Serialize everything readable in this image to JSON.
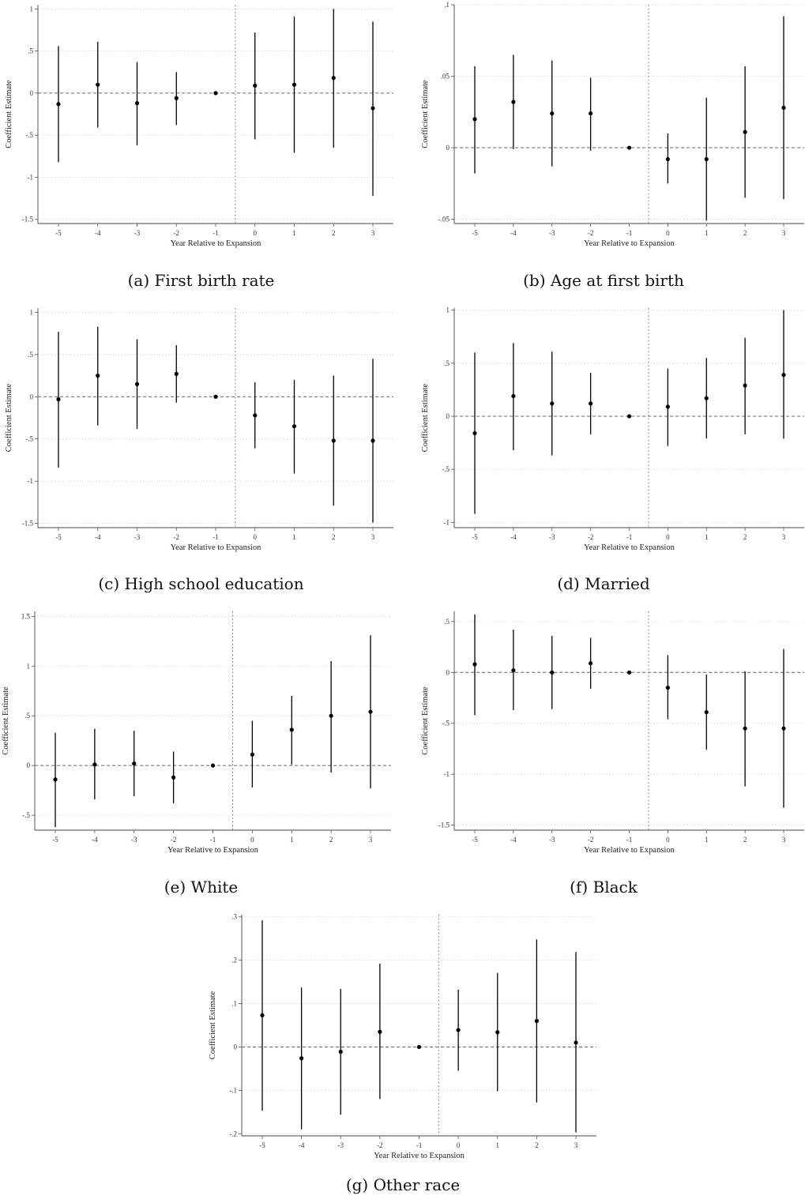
{
  "chart_data": [
    {
      "type": "scatter",
      "caption": "(a) First birth rate",
      "xlabel": "Year Relative to Expansion",
      "ylabel": "Coefficient Estimate",
      "x": [
        -5,
        -4,
        -3,
        -2,
        -1,
        0,
        1,
        2,
        3
      ],
      "estimates": [
        -0.13,
        0.1,
        -0.12,
        -0.06,
        0.0,
        0.09,
        0.1,
        0.18,
        -0.18
      ],
      "ci_lower": [
        -0.82,
        -0.41,
        -0.62,
        -0.38,
        0.0,
        -0.55,
        -0.71,
        -0.65,
        -1.22
      ],
      "ci_upper": [
        0.56,
        0.61,
        0.37,
        0.25,
        0.0,
        0.72,
        0.91,
        1.0,
        0.85
      ],
      "yticks": [
        "1",
        ".5",
        "0",
        "-.5",
        "-1",
        "-1.5"
      ],
      "yticks_values": [
        1,
        0.5,
        0,
        -0.5,
        -1,
        -1.5
      ],
      "ylim": [
        -1.55,
        1.05
      ],
      "grid": true
    },
    {
      "type": "scatter",
      "caption": "(b) Age at first birth",
      "xlabel": "Year Relative to Expansion",
      "ylabel": "Coefficient Estimate",
      "x": [
        -5,
        -4,
        -3,
        -2,
        -1,
        0,
        1,
        2,
        3
      ],
      "estimates": [
        0.02,
        0.032,
        0.024,
        0.024,
        0.0,
        -0.008,
        -0.008,
        0.011,
        0.028
      ],
      "ci_lower": [
        -0.018,
        -0.001,
        -0.013,
        -0.002,
        0.0,
        -0.025,
        -0.051,
        -0.035,
        -0.036
      ],
      "ci_upper": [
        0.057,
        0.065,
        0.061,
        0.049,
        0.0,
        0.01,
        0.035,
        0.057,
        0.092
      ],
      "yticks": [
        ".1",
        ".05",
        "0",
        "-.05"
      ],
      "yticks_values": [
        0.1,
        0.05,
        0,
        -0.05
      ],
      "ylim": [
        -0.053,
        0.1
      ],
      "grid": true
    },
    {
      "type": "scatter",
      "caption": "(c) High school education",
      "xlabel": "Year Relative to Expansion",
      "ylabel": "Coefficient Estimate",
      "x": [
        -5,
        -4,
        -3,
        -2,
        -1,
        0,
        1,
        2,
        3
      ],
      "estimates": [
        -0.03,
        0.25,
        0.15,
        0.27,
        0.0,
        -0.22,
        -0.35,
        -0.52,
        -0.52
      ],
      "ci_lower": [
        -0.84,
        -0.34,
        -0.38,
        -0.07,
        0.0,
        -0.61,
        -0.91,
        -1.29,
        -1.49
      ],
      "ci_upper": [
        0.77,
        0.83,
        0.68,
        0.61,
        0.0,
        0.17,
        0.2,
        0.25,
        0.45
      ],
      "yticks": [
        "1",
        ".5",
        "0",
        "-.5",
        "-1",
        "-1.5"
      ],
      "yticks_values": [
        1,
        0.5,
        0,
        -0.5,
        -1,
        -1.5
      ],
      "ylim": [
        -1.55,
        1.05
      ],
      "grid": true
    },
    {
      "type": "scatter",
      "caption": "(d) Married",
      "xlabel": "Year Relative to Expansion",
      "ylabel": "Coefficient Estimate",
      "x": [
        -5,
        -4,
        -3,
        -2,
        -1,
        0,
        1,
        2,
        3
      ],
      "estimates": [
        -0.16,
        0.19,
        0.12,
        0.12,
        0.0,
        0.09,
        0.17,
        0.29,
        0.39
      ],
      "ci_lower": [
        -0.92,
        -0.32,
        -0.37,
        -0.17,
        0.0,
        -0.28,
        -0.21,
        -0.17,
        -0.21
      ],
      "ci_upper": [
        0.6,
        0.69,
        0.61,
        0.41,
        0.0,
        0.45,
        0.55,
        0.74,
        1.0
      ],
      "yticks": [
        "1",
        ".5",
        "0",
        "-.5",
        "-1"
      ],
      "yticks_values": [
        1,
        0.5,
        0,
        -0.5,
        -1
      ],
      "ylim": [
        -1.05,
        1.02
      ],
      "grid": true
    },
    {
      "type": "scatter",
      "caption": "(e) White",
      "xlabel": "Year Relative to Expansion",
      "ylabel": "Coefficient Estimate",
      "x": [
        -5,
        -4,
        -3,
        -2,
        -1,
        0,
        1,
        2,
        3
      ],
      "estimates": [
        -0.14,
        0.01,
        0.02,
        -0.12,
        0.0,
        0.11,
        0.36,
        0.5,
        0.54
      ],
      "ci_lower": [
        -0.62,
        -0.34,
        -0.31,
        -0.38,
        0.0,
        -0.22,
        0.01,
        -0.07,
        -0.23
      ],
      "ci_upper": [
        0.33,
        0.37,
        0.35,
        0.14,
        0.0,
        0.45,
        0.7,
        1.05,
        1.31
      ],
      "yticks": [
        "1.5",
        "1",
        ".5",
        "0",
        "-.5"
      ],
      "yticks_values": [
        1.5,
        1,
        0.5,
        0,
        -0.5
      ],
      "ylim": [
        -0.65,
        1.55
      ],
      "grid": true
    },
    {
      "type": "scatter",
      "caption": "(f) Black",
      "xlabel": "Year Relative to Expansion",
      "ylabel": "Coefficient Estimate",
      "x": [
        -5,
        -4,
        -3,
        -2,
        -1,
        0,
        1,
        2,
        3
      ],
      "estimates": [
        0.08,
        0.02,
        0.0,
        0.09,
        0.0,
        -0.15,
        -0.39,
        -0.55,
        -0.55
      ],
      "ci_lower": [
        -0.42,
        -0.37,
        -0.36,
        -0.16,
        0.0,
        -0.46,
        -0.76,
        -1.12,
        -1.33
      ],
      "ci_upper": [
        0.57,
        0.42,
        0.36,
        0.34,
        0.0,
        0.17,
        -0.02,
        0.01,
        0.23
      ],
      "yticks": [
        ".5",
        "0",
        "-.5",
        "-1",
        "-1.5"
      ],
      "yticks_values": [
        0.5,
        0,
        -0.5,
        -1,
        -1.5
      ],
      "ylim": [
        -1.55,
        0.6
      ],
      "grid": true
    },
    {
      "type": "scatter",
      "caption": "(g) Other race",
      "xlabel": "Year Relative to Expansion",
      "ylabel": "Coefficient Estimate",
      "x": [
        -5,
        -4,
        -3,
        -2,
        -1,
        0,
        1,
        2,
        3
      ],
      "estimates": [
        0.073,
        -0.026,
        -0.011,
        0.035,
        0.0,
        0.039,
        0.034,
        0.06,
        0.01
      ],
      "ci_lower": [
        -0.147,
        -0.19,
        -0.156,
        -0.12,
        0.0,
        -0.055,
        -0.102,
        -0.128,
        -0.197
      ],
      "ci_upper": [
        0.292,
        0.137,
        0.134,
        0.192,
        0.0,
        0.132,
        0.171,
        0.248,
        0.219
      ],
      "yticks": [
        ".3",
        ".2",
        ".1",
        "0",
        "-.1",
        "-.2"
      ],
      "yticks_values": [
        0.3,
        0.2,
        0.1,
        0,
        -0.1,
        -0.2
      ],
      "ylim": [
        -0.205,
        0.305
      ],
      "grid": true
    }
  ]
}
